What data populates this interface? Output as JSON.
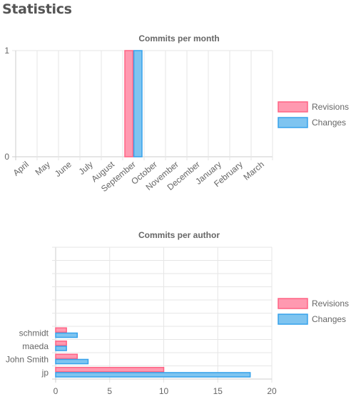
{
  "page": {
    "title": "Statistics"
  },
  "colors": {
    "revisions_fill": "#ff99b0",
    "revisions_stroke": "#ff6384",
    "changes_fill": "#7ec4f0",
    "changes_stroke": "#36a2eb",
    "grid": "#e6e6e6",
    "axis": "#cccccc"
  },
  "chart_data": [
    {
      "type": "bar",
      "title": "Commits per month",
      "categories": [
        "April",
        "May",
        "June",
        "July",
        "August",
        "September",
        "October",
        "November",
        "December",
        "January",
        "February",
        "March"
      ],
      "series": [
        {
          "name": "Revisions",
          "values": [
            0,
            0,
            0,
            0,
            0,
            1,
            0,
            0,
            0,
            0,
            0,
            0
          ]
        },
        {
          "name": "Changes",
          "values": [
            0,
            0,
            0,
            0,
            0,
            1,
            0,
            0,
            0,
            0,
            0,
            0
          ]
        }
      ],
      "ylim": [
        0,
        1
      ],
      "yticks": [
        "0",
        "1"
      ],
      "grid": true,
      "legend": "right"
    },
    {
      "type": "bar",
      "orientation": "horizontal",
      "title": "Commits per author",
      "categories": [
        "jp",
        "John Smith",
        "maeda",
        "schmidt"
      ],
      "series": [
        {
          "name": "Revisions",
          "values": [
            10,
            2,
            1,
            1
          ]
        },
        {
          "name": "Changes",
          "values": [
            18,
            3,
            1,
            2
          ]
        }
      ],
      "xlim": [
        0,
        20
      ],
      "xticks": [
        "0",
        "5",
        "10",
        "15",
        "20"
      ],
      "grid": true,
      "legend": "right"
    }
  ]
}
